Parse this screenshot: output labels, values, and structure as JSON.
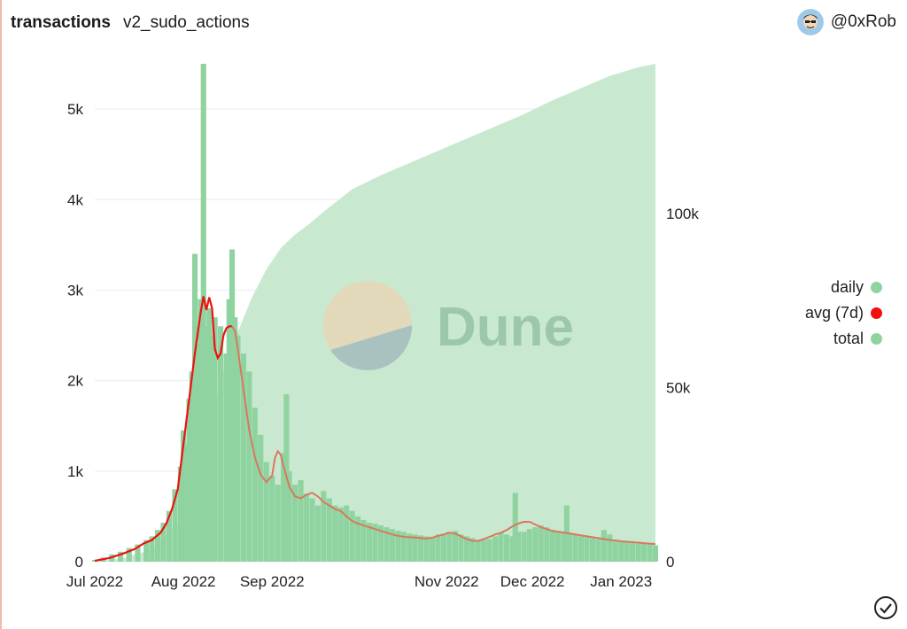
{
  "header": {
    "title": "transactions",
    "subtitle": "v2_sudo_actions",
    "author": "@0xRob"
  },
  "watermark": "Dune",
  "colors": {
    "daily": "#8fd3a0",
    "avg": "#f01010",
    "avg_tail": "#d9785e",
    "total": "#c8e9d0",
    "accent_border": "#f2b8ae"
  },
  "legend": [
    {
      "label": "daily",
      "color": "#8fd3a0"
    },
    {
      "label": "avg (7d)",
      "color": "#f01010"
    },
    {
      "label": "total",
      "color": "#8fd3a0"
    }
  ],
  "icons": {
    "author": "avatar-icon",
    "status": "check-circle-icon"
  },
  "chart_data": {
    "type": "bar",
    "title": "transactions",
    "subtitle": "v2_sudo_actions",
    "x_ticks": [
      "Jul 2022",
      "Aug 2022",
      "Sep 2022",
      "Nov 2022",
      "Dec 2022",
      "Jan 2023"
    ],
    "y_left": {
      "ticks": [
        "0",
        "1k",
        "2k",
        "3k",
        "4k",
        "5k"
      ],
      "range": [
        0,
        5500
      ]
    },
    "y_right": {
      "ticks": [
        "0",
        "50k",
        "100k"
      ],
      "range": [
        0,
        143000
      ]
    },
    "legend_position": "right",
    "grid": true,
    "series": [
      {
        "name": "daily",
        "type": "bar",
        "axis": "left",
        "points": [
          [
            0,
            20
          ],
          [
            3,
            45
          ],
          [
            6,
            80
          ],
          [
            9,
            110
          ],
          [
            12,
            150
          ],
          [
            15,
            190
          ],
          [
            18,
            240
          ],
          [
            20,
            280
          ],
          [
            22,
            350
          ],
          [
            24,
            430
          ],
          [
            26,
            560
          ],
          [
            28,
            800
          ],
          [
            30,
            1050
          ],
          [
            31,
            1450
          ],
          [
            32,
            1300
          ],
          [
            33,
            1800
          ],
          [
            34,
            2100
          ],
          [
            35,
            3400
          ],
          [
            36,
            2400
          ],
          [
            37,
            2900
          ],
          [
            38,
            5500
          ],
          [
            39,
            2600
          ],
          [
            40,
            2800
          ],
          [
            41,
            2500
          ],
          [
            42,
            2700
          ],
          [
            44,
            2600
          ],
          [
            46,
            2300
          ],
          [
            47,
            2900
          ],
          [
            48,
            3450
          ],
          [
            49,
            2700
          ],
          [
            50,
            2500
          ],
          [
            52,
            2300
          ],
          [
            54,
            2100
          ],
          [
            56,
            1700
          ],
          [
            58,
            1400
          ],
          [
            60,
            1100
          ],
          [
            62,
            950
          ],
          [
            64,
            850
          ],
          [
            66,
            1200
          ],
          [
            67,
            1850
          ],
          [
            68,
            1000
          ],
          [
            70,
            850
          ],
          [
            72,
            900
          ],
          [
            74,
            750
          ],
          [
            76,
            700
          ],
          [
            78,
            620
          ],
          [
            80,
            780
          ],
          [
            82,
            700
          ],
          [
            84,
            620
          ],
          [
            86,
            600
          ],
          [
            88,
            620
          ],
          [
            90,
            560
          ],
          [
            92,
            500
          ],
          [
            94,
            460
          ],
          [
            96,
            430
          ],
          [
            98,
            420
          ],
          [
            100,
            400
          ],
          [
            102,
            380
          ],
          [
            104,
            360
          ],
          [
            106,
            340
          ],
          [
            108,
            330
          ],
          [
            110,
            310
          ],
          [
            112,
            300
          ],
          [
            114,
            290
          ],
          [
            116,
            280
          ],
          [
            118,
            270
          ],
          [
            120,
            300
          ],
          [
            122,
            310
          ],
          [
            124,
            330
          ],
          [
            126,
            340
          ],
          [
            128,
            300
          ],
          [
            130,
            280
          ],
          [
            132,
            260
          ],
          [
            134,
            240
          ],
          [
            136,
            240
          ],
          [
            138,
            250
          ],
          [
            140,
            280
          ],
          [
            142,
            320
          ],
          [
            144,
            300
          ],
          [
            146,
            280
          ],
          [
            147,
            760
          ],
          [
            148,
            330
          ],
          [
            150,
            330
          ],
          [
            152,
            360
          ],
          [
            154,
            380
          ],
          [
            156,
            400
          ],
          [
            158,
            380
          ],
          [
            160,
            350
          ],
          [
            162,
            340
          ],
          [
            164,
            330
          ],
          [
            165,
            620
          ],
          [
            166,
            320
          ],
          [
            168,
            300
          ],
          [
            170,
            280
          ],
          [
            172,
            270
          ],
          [
            174,
            260
          ],
          [
            176,
            250
          ],
          [
            178,
            350
          ],
          [
            180,
            300
          ],
          [
            182,
            240
          ],
          [
            184,
            230
          ],
          [
            186,
            220
          ],
          [
            188,
            210
          ],
          [
            190,
            200
          ],
          [
            192,
            210
          ],
          [
            194,
            200
          ],
          [
            196,
            180
          ]
        ]
      },
      {
        "name": "avg (7d)",
        "type": "line",
        "axis": "left",
        "points": [
          [
            0,
            10
          ],
          [
            5,
            40
          ],
          [
            10,
            90
          ],
          [
            14,
            140
          ],
          [
            17,
            200
          ],
          [
            20,
            240
          ],
          [
            23,
            320
          ],
          [
            25,
            420
          ],
          [
            27,
            580
          ],
          [
            29,
            800
          ],
          [
            31,
            1300
          ],
          [
            33,
            1800
          ],
          [
            35,
            2300
          ],
          [
            37,
            2750
          ],
          [
            38,
            2930
          ],
          [
            39,
            2780
          ],
          [
            40,
            2920
          ],
          [
            41,
            2800
          ],
          [
            42,
            2350
          ],
          [
            43,
            2250
          ],
          [
            44,
            2300
          ],
          [
            45,
            2500
          ],
          [
            46,
            2580
          ],
          [
            47,
            2600
          ],
          [
            48,
            2600
          ],
          [
            49,
            2550
          ],
          [
            50,
            2350
          ],
          [
            52,
            1900
          ],
          [
            54,
            1450
          ],
          [
            56,
            1150
          ],
          [
            58,
            960
          ],
          [
            60,
            880
          ],
          [
            62,
            950
          ],
          [
            63,
            1150
          ],
          [
            64,
            1220
          ],
          [
            65,
            1180
          ],
          [
            66,
            1050
          ],
          [
            68,
            830
          ],
          [
            70,
            720
          ],
          [
            72,
            700
          ],
          [
            74,
            740
          ],
          [
            76,
            760
          ],
          [
            78,
            720
          ],
          [
            80,
            660
          ],
          [
            82,
            620
          ],
          [
            84,
            580
          ],
          [
            86,
            560
          ],
          [
            88,
            500
          ],
          [
            90,
            450
          ],
          [
            92,
            420
          ],
          [
            94,
            400
          ],
          [
            96,
            380
          ],
          [
            98,
            360
          ],
          [
            100,
            340
          ],
          [
            102,
            320
          ],
          [
            104,
            300
          ],
          [
            106,
            285
          ],
          [
            108,
            275
          ],
          [
            110,
            270
          ],
          [
            112,
            265
          ],
          [
            114,
            260
          ],
          [
            116,
            255
          ],
          [
            118,
            265
          ],
          [
            120,
            285
          ],
          [
            122,
            300
          ],
          [
            124,
            320
          ],
          [
            126,
            310
          ],
          [
            128,
            280
          ],
          [
            130,
            250
          ],
          [
            132,
            230
          ],
          [
            134,
            230
          ],
          [
            136,
            250
          ],
          [
            138,
            275
          ],
          [
            140,
            300
          ],
          [
            142,
            320
          ],
          [
            144,
            350
          ],
          [
            146,
            390
          ],
          [
            148,
            420
          ],
          [
            150,
            440
          ],
          [
            152,
            440
          ],
          [
            154,
            410
          ],
          [
            156,
            380
          ],
          [
            158,
            360
          ],
          [
            160,
            340
          ],
          [
            162,
            330
          ],
          [
            164,
            320
          ],
          [
            166,
            310
          ],
          [
            168,
            300
          ],
          [
            170,
            290
          ],
          [
            172,
            280
          ],
          [
            174,
            270
          ],
          [
            176,
            260
          ],
          [
            178,
            250
          ],
          [
            180,
            240
          ],
          [
            182,
            235
          ],
          [
            184,
            225
          ],
          [
            186,
            220
          ],
          [
            188,
            215
          ],
          [
            190,
            210
          ],
          [
            192,
            205
          ],
          [
            194,
            200
          ],
          [
            196,
            195
          ]
        ]
      },
      {
        "name": "total",
        "type": "area",
        "axis": "right",
        "points": [
          [
            0,
            0
          ],
          [
            10,
            1000
          ],
          [
            20,
            3500
          ],
          [
            30,
            12000
          ],
          [
            38,
            32000
          ],
          [
            40,
            38000
          ],
          [
            45,
            55000
          ],
          [
            50,
            66000
          ],
          [
            55,
            76000
          ],
          [
            60,
            84000
          ],
          [
            65,
            90000
          ],
          [
            70,
            94000
          ],
          [
            75,
            97000
          ],
          [
            80,
            100500
          ],
          [
            90,
            107000
          ],
          [
            100,
            111000
          ],
          [
            110,
            114500
          ],
          [
            120,
            118000
          ],
          [
            130,
            121500
          ],
          [
            140,
            125000
          ],
          [
            150,
            128500
          ],
          [
            160,
            132500
          ],
          [
            170,
            136000
          ],
          [
            180,
            139500
          ],
          [
            190,
            142000
          ],
          [
            196,
            143000
          ]
        ]
      }
    ]
  }
}
